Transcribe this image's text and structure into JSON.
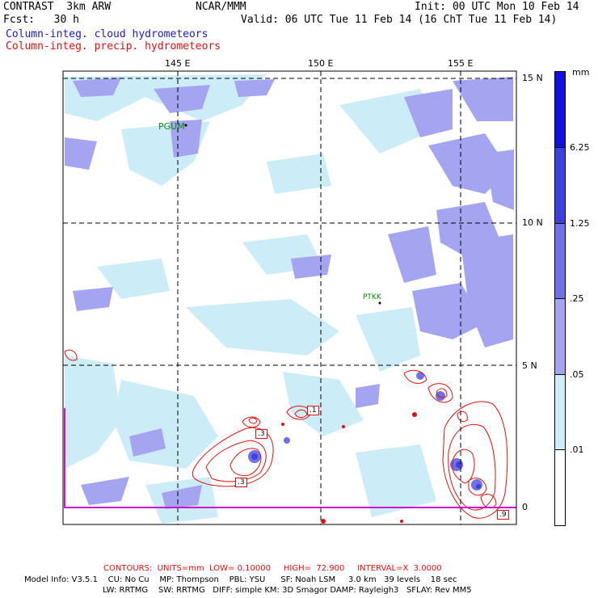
{
  "header": {
    "model": "CONTRAST  3km ARW",
    "center": "NCAR/MMM",
    "init": "Init: 00 UTC Mon 10 Feb 14",
    "fcst": "Fcst:   30 h",
    "valid": "Valid: 06 UTC Tue 11 Feb 14 (16 ChT Tue 11 Feb 14)",
    "field1": "Column-integ. cloud hydrometeors",
    "field2": "Column-integ. precip. hydrometeors"
  },
  "axes": {
    "lon_labels": [
      "145 E",
      "150 E",
      "155 E"
    ],
    "lat_labels": [
      "15 N",
      "10 N",
      "5 N",
      "0"
    ]
  },
  "stations": [
    "PGUM",
    "PTKK"
  ],
  "contour_labels": [
    ".1",
    ".3",
    ".3",
    ".9"
  ],
  "colorbar": {
    "unit": "mm",
    "labels": [
      "6.25",
      "1.25",
      ".25",
      ".05",
      ".01"
    ],
    "colors": [
      "#1010e0",
      "#4040e0",
      "#7070e8",
      "#a4a4f0",
      "#ccecf8",
      "#ffffff"
    ]
  },
  "footer": {
    "contours": "CONTOURS:  UNITS=mm  LOW= 0.10000     HIGH=  72.900     INTERVAL=X  3.0000",
    "model_info_1": "Model Info: V3.5.1    CU: No Cu    MP: Thompson    PBL: YSU      SF: Noah LSM     3.0 km   39 levels    18 sec",
    "model_info_2": "LW: RRTMG    SW: RRTMG   DIFF: simple KM: 3D Smagor DAMP: Rayleigh3   SFLAY: Rev MM5"
  }
}
